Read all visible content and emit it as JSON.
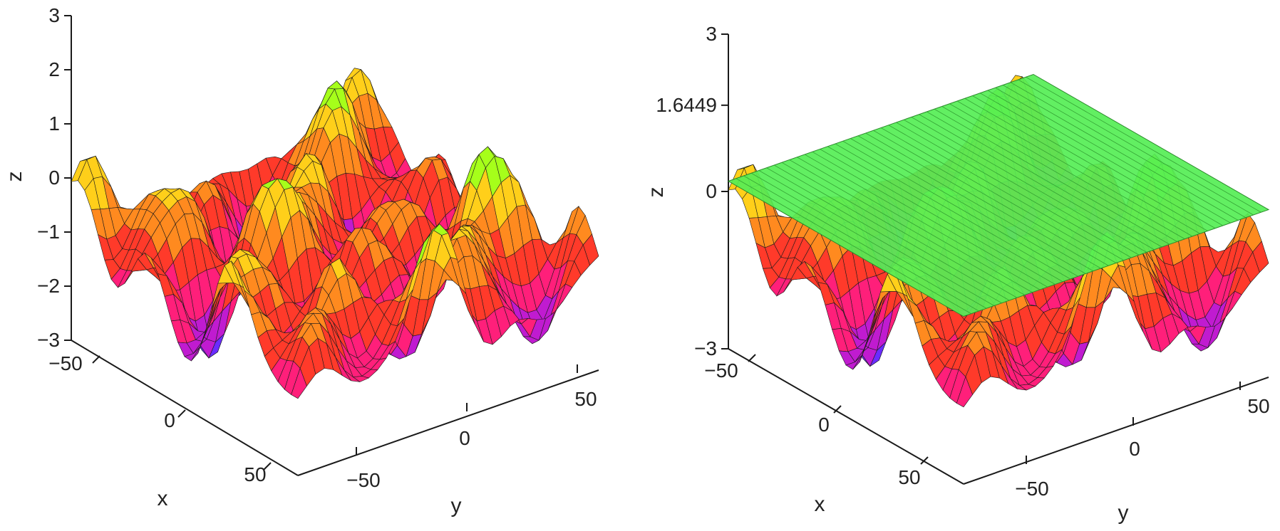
{
  "chart_data": [
    {
      "type": "surface",
      "title": "",
      "xlabel": "x",
      "ylabel": "y",
      "zlabel": "z",
      "x_ticks": [
        "−50",
        "0",
        "50"
      ],
      "y_ticks": [
        "−50",
        "0",
        "50"
      ],
      "z_ticks": [
        "3",
        "2",
        "1",
        "0",
        "−1",
        "−2",
        "−3"
      ],
      "z_tick_values": [
        3,
        2,
        1,
        0,
        -1,
        -2,
        -3
      ],
      "xlim": [
        -60,
        60
      ],
      "ylim": [
        -60,
        60
      ],
      "zlim": [
        -3,
        3
      ],
      "colormap": "hsv",
      "colors": [
        "#1f4fff",
        "#6a2cff",
        "#c01bd0",
        "#ff1f7a",
        "#ff3a2a",
        "#ff8a1f",
        "#ffcf1a",
        "#a6ff1a",
        "#3aff5a"
      ],
      "threshold_plane": null
    },
    {
      "type": "surface",
      "title": "",
      "xlabel": "x",
      "ylabel": "y",
      "zlabel": "z",
      "x_ticks": [
        "−50",
        "0",
        "50"
      ],
      "y_ticks": [
        "−50",
        "0",
        "50"
      ],
      "z_ticks": [
        "3",
        "1.6449",
        "0",
        "−3"
      ],
      "z_tick_values": [
        3,
        1.6449,
        0,
        -3
      ],
      "xlim": [
        -60,
        60
      ],
      "ylim": [
        -60,
        60
      ],
      "zlim": [
        -3,
        3
      ],
      "colormap": "hsv",
      "colors": [
        "#1f4fff",
        "#6a2cff",
        "#c01bd0",
        "#ff1f7a",
        "#ff3a2a",
        "#ff8a1f",
        "#ffcf1a",
        "#a6ff1a",
        "#3aff5a"
      ],
      "threshold_plane": {
        "z": 1.6449,
        "color": "#55ee55"
      }
    }
  ]
}
